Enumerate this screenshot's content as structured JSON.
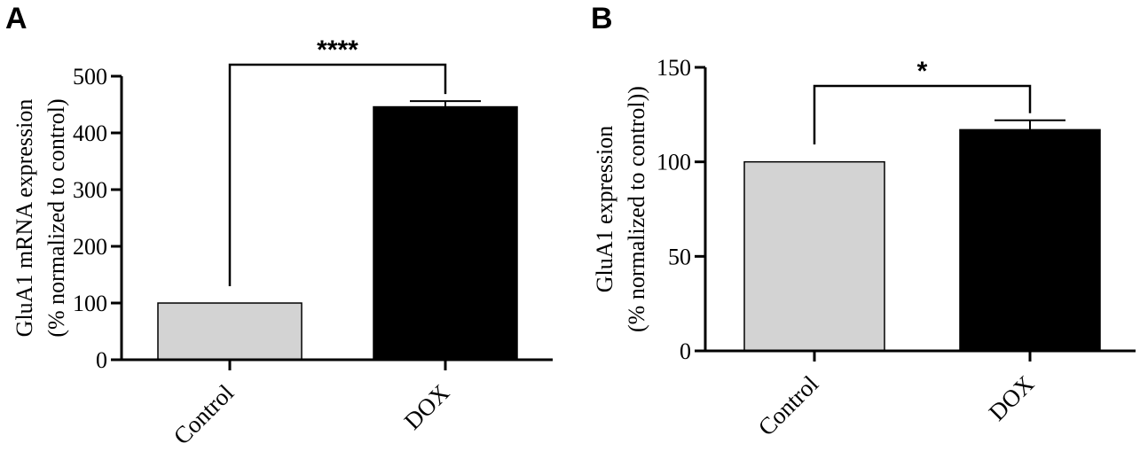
{
  "chart_data": [
    {
      "type": "bar",
      "panel": "A",
      "categories": [
        "Control",
        "DOX"
      ],
      "values": [
        100,
        446
      ],
      "errors": [
        0,
        10
      ],
      "ylabel_line1": "GluA1 mRNA expression",
      "ylabel_line2": "(% normalized to control)",
      "ylim": [
        0,
        500
      ],
      "yticks": [
        0,
        100,
        200,
        300,
        400,
        500
      ],
      "significance": "****",
      "grid": false,
      "colors": [
        "#d3d3d3",
        "#000000"
      ]
    },
    {
      "type": "bar",
      "panel": "B",
      "categories": [
        "Control",
        "DOX"
      ],
      "values": [
        100,
        117
      ],
      "errors": [
        0,
        5
      ],
      "ylabel_line1": "GluA1 expression",
      "ylabel_line2": "(% normalized to control))",
      "ylim": [
        0,
        150
      ],
      "yticks": [
        0,
        50,
        100,
        150
      ],
      "significance": "*",
      "grid": false,
      "colors": [
        "#d3d3d3",
        "#000000"
      ]
    }
  ]
}
